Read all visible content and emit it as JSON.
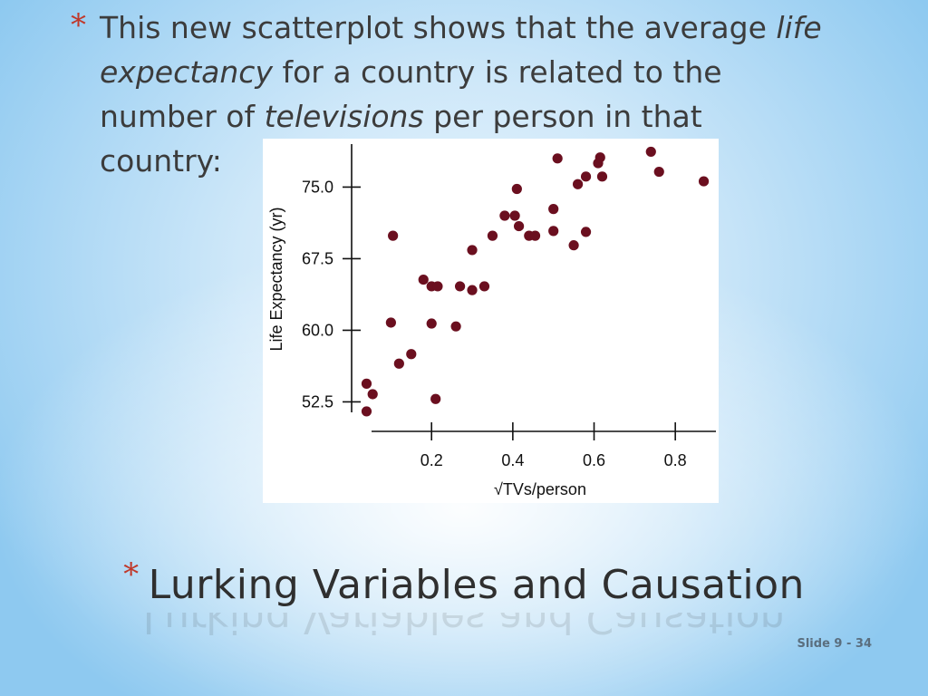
{
  "body": {
    "bullet": "*",
    "lines": [
      [
        {
          "t": "This new scatterplot shows that the average ",
          "i": false
        },
        {
          "t": "life",
          "i": true
        }
      ],
      [
        {
          "t": "expectancy",
          "i": true
        },
        {
          "t": " for a country is related to the",
          "i": false
        }
      ],
      [
        {
          "t": "number of ",
          "i": false
        },
        {
          "t": "televisions",
          "i": true
        },
        {
          "t": " per person in that",
          "i": false
        }
      ],
      [
        {
          "t": "country:",
          "i": false
        }
      ]
    ]
  },
  "title": {
    "bullet": "*",
    "text": "Lurking Variables and Causation"
  },
  "slide_number": "Slide 9 - 34",
  "chart_data": {
    "type": "scatter",
    "title": "",
    "xlabel": "√TVs/person",
    "ylabel": "Life Expectancy (yr)",
    "xlim": [
      0.03,
      0.9
    ],
    "ylim": [
      49.5,
      79.5
    ],
    "x_ticks": [
      0.2,
      0.4,
      0.6,
      0.8
    ],
    "x_tick_labels": [
      "0.2",
      "0.4",
      "0.6",
      "0.8"
    ],
    "y_ticks": [
      52.5,
      60.0,
      67.5,
      75.0
    ],
    "y_tick_labels": [
      "52.5",
      "60.0",
      "67.5",
      "75.0"
    ],
    "grid": false,
    "marker_color": "#6b0f1f",
    "points": [
      {
        "x": 0.04,
        "y": 51.5
      },
      {
        "x": 0.04,
        "y": 54.4
      },
      {
        "x": 0.055,
        "y": 53.3
      },
      {
        "x": 0.1,
        "y": 60.8
      },
      {
        "x": 0.105,
        "y": 69.9
      },
      {
        "x": 0.12,
        "y": 56.5
      },
      {
        "x": 0.15,
        "y": 57.5
      },
      {
        "x": 0.18,
        "y": 65.3
      },
      {
        "x": 0.2,
        "y": 60.7
      },
      {
        "x": 0.2,
        "y": 64.6
      },
      {
        "x": 0.21,
        "y": 52.8
      },
      {
        "x": 0.215,
        "y": 64.6
      },
      {
        "x": 0.26,
        "y": 60.4
      },
      {
        "x": 0.27,
        "y": 64.6
      },
      {
        "x": 0.3,
        "y": 64.2
      },
      {
        "x": 0.3,
        "y": 68.4
      },
      {
        "x": 0.33,
        "y": 64.6
      },
      {
        "x": 0.35,
        "y": 69.9
      },
      {
        "x": 0.38,
        "y": 72.0
      },
      {
        "x": 0.405,
        "y": 72.0
      },
      {
        "x": 0.41,
        "y": 74.8
      },
      {
        "x": 0.415,
        "y": 70.9
      },
      {
        "x": 0.44,
        "y": 69.9
      },
      {
        "x": 0.455,
        "y": 69.9
      },
      {
        "x": 0.5,
        "y": 70.4
      },
      {
        "x": 0.5,
        "y": 72.7
      },
      {
        "x": 0.51,
        "y": 78.0
      },
      {
        "x": 0.55,
        "y": 68.9
      },
      {
        "x": 0.56,
        "y": 75.3
      },
      {
        "x": 0.58,
        "y": 70.3
      },
      {
        "x": 0.58,
        "y": 76.1
      },
      {
        "x": 0.61,
        "y": 77.5
      },
      {
        "x": 0.615,
        "y": 78.1
      },
      {
        "x": 0.62,
        "y": 76.1
      },
      {
        "x": 0.74,
        "y": 78.7
      },
      {
        "x": 0.76,
        "y": 76.6
      },
      {
        "x": 0.87,
        "y": 75.6
      }
    ]
  }
}
